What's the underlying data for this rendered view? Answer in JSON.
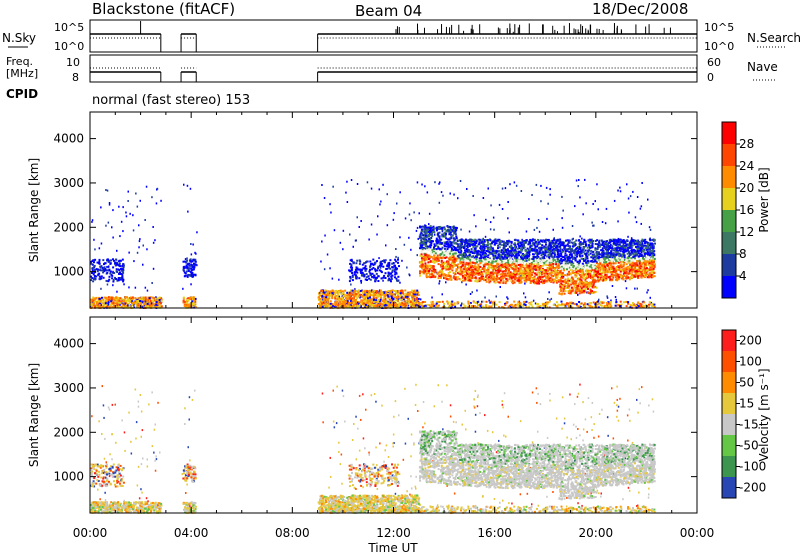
{
  "header": {
    "station": "Blackstone (fitACF)",
    "beam": "Beam 04",
    "date": "18/Dec/2008"
  },
  "params": {
    "nsky_label": "N.Sky",
    "freq_label_1": "Freq.",
    "freq_label_2": "[MHz]",
    "cpid_label": "CPID",
    "cpid_text": "normal (fast stereo) 153",
    "nsearch_label": "N.Search",
    "nave_label": "Nave",
    "noise_ticks": [
      "10^5",
      "10^0"
    ],
    "freq_ticks": [
      "10",
      "8"
    ],
    "nave_ticks": [
      "60",
      "0"
    ]
  },
  "colors": {
    "power_scale": [
      "#0000ff",
      "#1e3ca0",
      "#3c7864",
      "#46a046",
      "#e6d21e",
      "#ff8c00",
      "#ff4600",
      "#ff0000"
    ],
    "velocity_scale": [
      "#2846b4",
      "#3c9650",
      "#64c846",
      "#c8c8c8",
      "#e6c83c",
      "#ff8c00",
      "#ff5000",
      "#ff1e1e"
    ]
  },
  "chart_data": [
    {
      "type": "heatmap",
      "panel": "power",
      "ylabel": "Slant Range [km]",
      "yticks": [
        "4000",
        "3000",
        "2000",
        "1000"
      ],
      "ylim": [
        180,
        4600
      ],
      "xlim_hours": [
        0,
        24
      ],
      "xticks": [
        "00:00",
        "04:00",
        "08:00",
        "12:00",
        "16:00",
        "20:00",
        "00:00"
      ],
      "colorbar_label": "Power [dB]",
      "colorbar_ticks": [
        "28",
        "24",
        "20",
        "16",
        "12",
        "8",
        "4"
      ],
      "data_gaps_hours": [
        [
          2.8,
          3.6
        ],
        [
          4.2,
          9.0
        ]
      ]
    },
    {
      "type": "heatmap",
      "panel": "velocity",
      "ylabel": "Slant Range [km]",
      "yticks": [
        "4000",
        "3000",
        "2000",
        "1000"
      ],
      "ylim": [
        180,
        4600
      ],
      "xlim_hours": [
        0,
        24
      ],
      "xticks": [
        "00:00",
        "04:00",
        "08:00",
        "12:00",
        "16:00",
        "20:00",
        "00:00"
      ],
      "xlabel": "Time UT",
      "colorbar_label": "Velocity [m s⁻¹]",
      "colorbar_ticks": [
        "200",
        "100",
        "50",
        "15",
        "-15",
        "-50",
        "-100",
        "-200"
      ],
      "data_gaps_hours": [
        [
          2.8,
          3.6
        ],
        [
          4.2,
          9.0
        ]
      ]
    }
  ]
}
